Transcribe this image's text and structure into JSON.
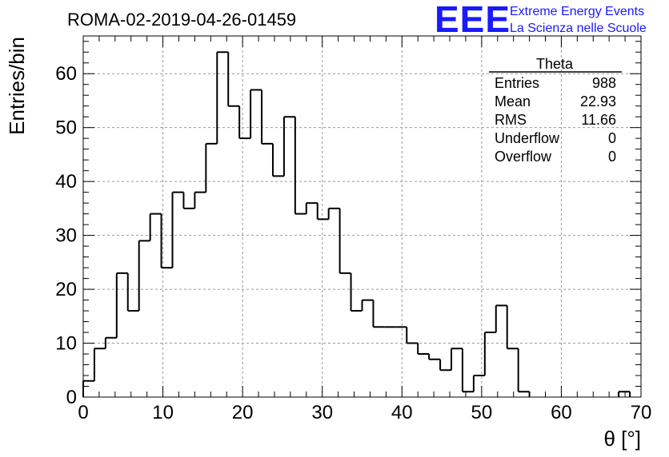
{
  "chart_data": {
    "type": "bar",
    "style": "step-histogram",
    "title": "ROMA-02-2019-04-26-01459",
    "xlabel": "θ [°]",
    "ylabel": "Entries/bin",
    "xlim": [
      0,
      70
    ],
    "ylim": [
      0,
      67
    ],
    "bin_width": 1.4,
    "bin_start": 0,
    "grid": true,
    "x_ticks": [
      0,
      10,
      20,
      30,
      40,
      50,
      60,
      70
    ],
    "y_ticks": [
      0,
      10,
      20,
      30,
      40,
      50,
      60
    ],
    "x_tick_labels": [
      "0",
      "10",
      "20",
      "30",
      "40",
      "50",
      "60",
      "70"
    ],
    "y_tick_labels": [
      "0",
      "10",
      "20",
      "30",
      "40",
      "50",
      "60"
    ],
    "values": [
      3,
      9,
      11,
      23,
      16,
      29,
      34,
      24,
      38,
      35,
      38,
      47,
      64,
      54,
      48,
      57,
      47,
      41,
      52,
      34,
      36,
      33,
      35,
      23,
      16,
      18,
      13,
      13,
      13,
      10,
      8,
      7,
      5,
      9,
      1,
      4,
      12,
      17,
      9,
      1,
      0,
      0,
      0,
      0,
      0,
      0,
      0,
      0,
      1,
      0
    ],
    "line_color": "#000000",
    "stats_box": {
      "name": "Theta",
      "rows": [
        {
          "label": "Entries",
          "value": "988"
        },
        {
          "label": "Mean",
          "value": "22.93"
        },
        {
          "label": "RMS",
          "value": "11.66"
        },
        {
          "label": "Underflow",
          "value": "0"
        },
        {
          "label": "Overflow",
          "value": "0"
        }
      ]
    }
  },
  "branding": {
    "logo_text": "EEE",
    "line1": "Extreme Energy Events",
    "line2": "La Scienza nelle Scuole",
    "color": "#1a1aff"
  }
}
